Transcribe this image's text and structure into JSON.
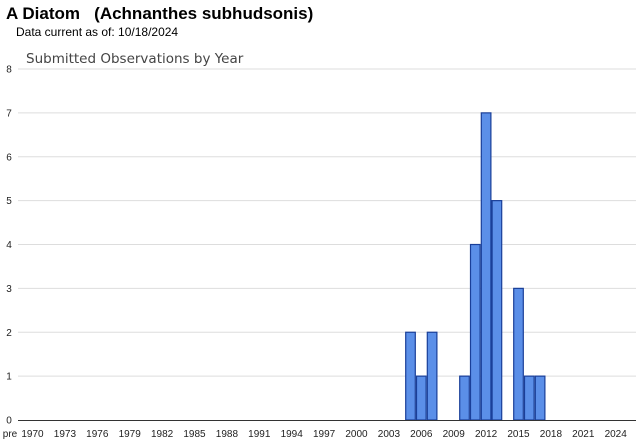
{
  "header": {
    "title": "A Diatom   (Achnanthes subhudsonis)",
    "subtitle": "Data current as of: 10/18/2024"
  },
  "chart_data": {
    "type": "bar",
    "title": "Submitted Observations by Year",
    "xlabel": "",
    "ylabel": "",
    "ylim": [
      0,
      8
    ],
    "yticks": [
      0,
      1,
      2,
      3,
      4,
      5,
      6,
      7,
      8
    ],
    "xtick_labels": [
      "pre",
      "1970",
      "1973",
      "1976",
      "1979",
      "1982",
      "1985",
      "1988",
      "1991",
      "1994",
      "1997",
      "2000",
      "2003",
      "2006",
      "2009",
      "2012",
      "2015",
      "2018",
      "2021",
      "2024"
    ],
    "grid": true,
    "bar_color": "#5b8fe8",
    "bar_edge_color": "#1a3f99",
    "categories": [
      "2005",
      "2006",
      "2007",
      "2010",
      "2011",
      "2012",
      "2013",
      "2015",
      "2016",
      "2017"
    ],
    "values": [
      2,
      1,
      2,
      1,
      4,
      7,
      5,
      3,
      1,
      1
    ]
  }
}
